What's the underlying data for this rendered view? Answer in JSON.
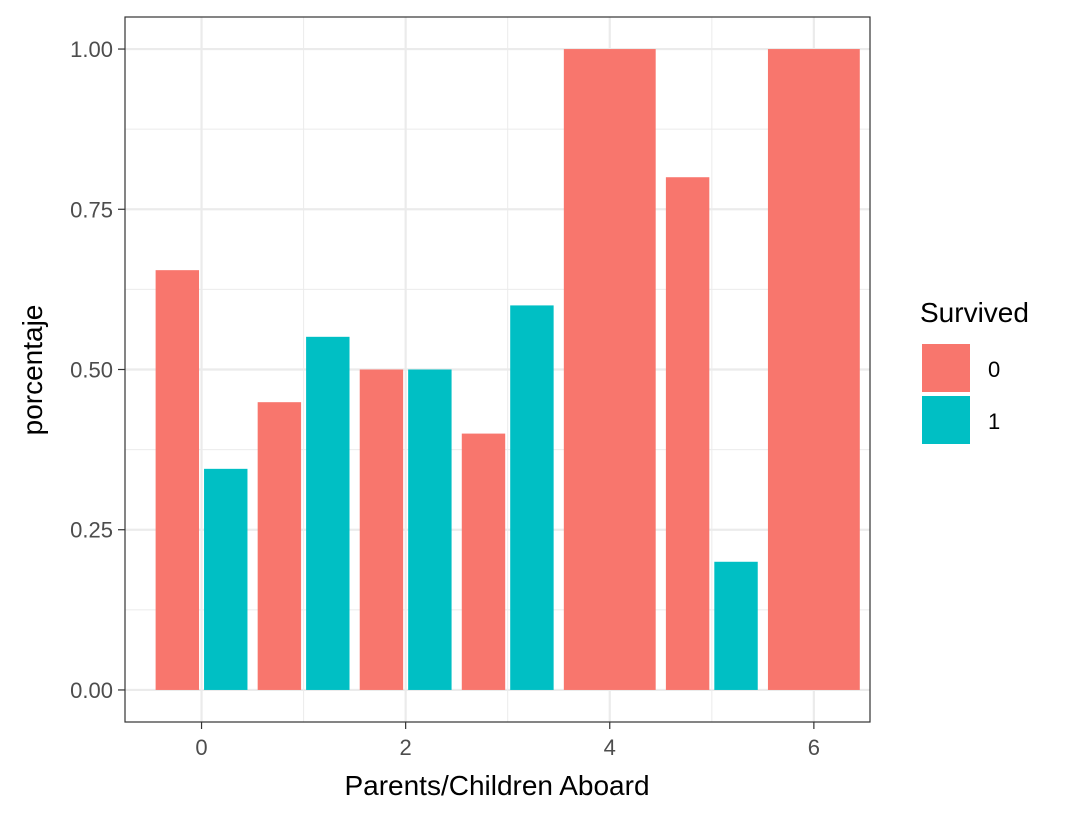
{
  "chart_data": {
    "type": "bar",
    "xlabel": "Parents/Children Aboard",
    "ylabel": "porcentaje",
    "xlim": [
      -0.75,
      6.55
    ],
    "ylim": [
      -0.05,
      1.05
    ],
    "x_ticks": [
      0,
      2,
      4,
      6
    ],
    "x_tick_labels": [
      "0",
      "2",
      "4",
      "6"
    ],
    "y_ticks": [
      0.0,
      0.25,
      0.5,
      0.75,
      1.0
    ],
    "y_tick_labels": [
      "0.00",
      "0.25",
      "0.50",
      "0.75",
      "1.00"
    ],
    "grid": true,
    "legend": {
      "title": "Survived",
      "position": "right",
      "entries": [
        {
          "label": "0",
          "color": "#F8766D"
        },
        {
          "label": "1",
          "color": "#00BFC4"
        }
      ]
    },
    "bars": [
      {
        "x": 0,
        "survived": "0",
        "value": 0.655
      },
      {
        "x": 0,
        "survived": "1",
        "value": 0.345
      },
      {
        "x": 1,
        "survived": "0",
        "value": 0.449
      },
      {
        "x": 1,
        "survived": "1",
        "value": 0.551
      },
      {
        "x": 2,
        "survived": "0",
        "value": 0.5
      },
      {
        "x": 2,
        "survived": "1",
        "value": 0.5
      },
      {
        "x": 3,
        "survived": "0",
        "value": 0.4
      },
      {
        "x": 3,
        "survived": "1",
        "value": 0.6
      },
      {
        "x": 4,
        "survived": "0",
        "value": 1.0
      },
      {
        "x": 5,
        "survived": "0",
        "value": 0.8
      },
      {
        "x": 5,
        "survived": "1",
        "value": 0.2
      },
      {
        "x": 6,
        "survived": "0",
        "value": 1.0
      }
    ]
  }
}
